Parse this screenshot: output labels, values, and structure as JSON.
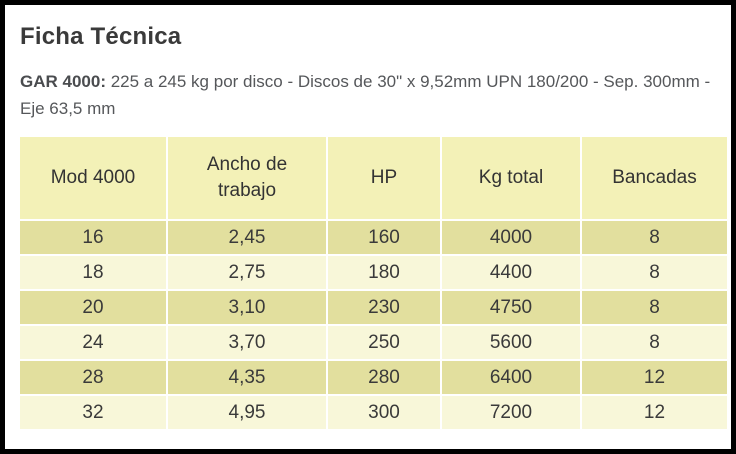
{
  "page": {
    "title": "Ficha Técnica"
  },
  "description": {
    "product_label": "GAR 4000:",
    "specs": " 225 a 245 kg por disco - Discos de 30\" x 9,52mm UPN 180/200 - Sep. 300mm - Eje 63,5 mm"
  },
  "table": {
    "headers": [
      "Mod 4000",
      "Ancho de trabajo",
      "HP",
      "Kg total",
      "Bancadas"
    ],
    "rows": [
      [
        "16",
        "2,45",
        "160",
        "4000",
        "8"
      ],
      [
        "18",
        "2,75",
        "180",
        "4400",
        "8"
      ],
      [
        "20",
        "3,10",
        "230",
        "4750",
        "8"
      ],
      [
        "24",
        "3,70",
        "250",
        "5600",
        "8"
      ],
      [
        "28",
        "4,35",
        "280",
        "6400",
        "12"
      ],
      [
        "32",
        "4,95",
        "300",
        "7200",
        "12"
      ]
    ]
  },
  "colors": {
    "frame_border": "#000000",
    "header_bg": "#f3f1b7",
    "row_dark_bg": "#e2df9e",
    "row_light_bg": "#f8f7d9",
    "title_text": "#3a3a3a",
    "body_text": "#55575a"
  }
}
